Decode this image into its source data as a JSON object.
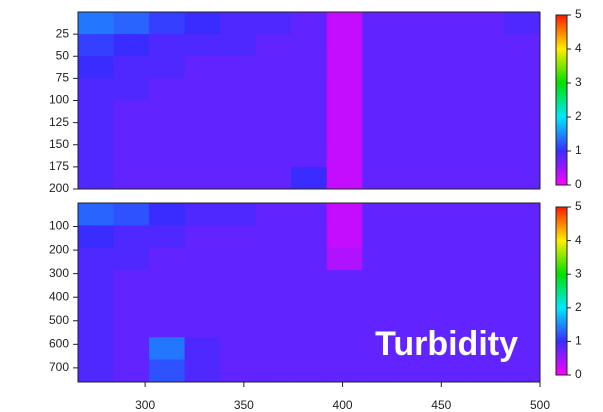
{
  "chart_data": [
    {
      "type": "heatmap",
      "x": [
        275,
        293,
        311,
        329,
        347,
        365,
        383,
        401,
        419,
        437,
        455,
        473,
        491
      ],
      "y": [
        12.5,
        37.5,
        62.5,
        87.5,
        112.5,
        137.5,
        162.5,
        187.5
      ],
      "z": [
        [
          1.4,
          1.3,
          1.1,
          1.0,
          0.9,
          0.9,
          0.8,
          0.3,
          0.8,
          0.8,
          0.8,
          0.8,
          0.9
        ],
        [
          1.1,
          1.0,
          0.9,
          0.9,
          0.9,
          0.8,
          0.8,
          0.3,
          0.8,
          0.8,
          0.8,
          0.8,
          0.8
        ],
        [
          1.0,
          0.9,
          0.9,
          0.8,
          0.8,
          0.8,
          0.8,
          0.3,
          0.8,
          0.8,
          0.8,
          0.8,
          0.8
        ],
        [
          0.9,
          0.9,
          0.8,
          0.8,
          0.8,
          0.8,
          0.8,
          0.3,
          0.8,
          0.8,
          0.8,
          0.8,
          0.8
        ],
        [
          0.9,
          0.8,
          0.8,
          0.8,
          0.8,
          0.8,
          0.8,
          0.3,
          0.8,
          0.8,
          0.8,
          0.8,
          0.8
        ],
        [
          0.9,
          0.8,
          0.8,
          0.8,
          0.8,
          0.8,
          0.8,
          0.3,
          0.8,
          0.8,
          0.8,
          0.8,
          0.8
        ],
        [
          0.9,
          0.8,
          0.8,
          0.8,
          0.8,
          0.8,
          0.8,
          0.3,
          0.8,
          0.8,
          0.8,
          0.8,
          0.8
        ],
        [
          0.9,
          0.8,
          0.8,
          0.8,
          0.8,
          0.8,
          1.0,
          0.3,
          0.8,
          0.8,
          0.8,
          0.8,
          0.8
        ]
      ],
      "xlim": [
        266,
        500
      ],
      "ylim": [
        0,
        200
      ],
      "yticks": [
        25,
        50,
        75,
        100,
        125,
        150,
        175,
        200
      ],
      "zlim": [
        0,
        5
      ],
      "zticks": [
        0,
        1,
        2,
        3,
        4,
        5
      ],
      "colormap": [
        "#ff00ff",
        "#3a2cff",
        "#00e8ff",
        "#00e000",
        "#ffee00",
        "#ff1a00"
      ]
    },
    {
      "type": "heatmap",
      "x": [
        275,
        293,
        311,
        329,
        347,
        365,
        383,
        401,
        419,
        437,
        455,
        473,
        491
      ],
      "y": [
        47.5,
        142.5,
        237.5,
        332.5,
        427.5,
        522.5,
        617.5,
        712.5
      ],
      "z": [
        [
          1.3,
          1.2,
          1.0,
          0.9,
          0.9,
          0.8,
          0.8,
          0.3,
          0.8,
          0.8,
          0.8,
          0.8,
          0.8
        ],
        [
          1.0,
          0.9,
          0.9,
          0.8,
          0.8,
          0.8,
          0.8,
          0.3,
          0.8,
          0.8,
          0.8,
          0.8,
          0.8
        ],
        [
          0.9,
          0.9,
          0.8,
          0.8,
          0.8,
          0.8,
          0.8,
          0.4,
          0.8,
          0.8,
          0.8,
          0.8,
          0.8
        ],
        [
          0.9,
          0.8,
          0.8,
          0.8,
          0.8,
          0.8,
          0.8,
          0.8,
          0.8,
          0.8,
          0.8,
          0.8,
          0.8
        ],
        [
          0.9,
          0.8,
          0.8,
          0.8,
          0.8,
          0.8,
          0.8,
          0.8,
          0.8,
          0.8,
          0.8,
          0.8,
          0.8
        ],
        [
          0.9,
          0.8,
          0.8,
          0.8,
          0.8,
          0.8,
          0.8,
          0.8,
          0.8,
          0.8,
          0.8,
          0.8,
          0.8
        ],
        [
          0.9,
          0.8,
          1.4,
          0.9,
          0.8,
          0.8,
          0.8,
          0.8,
          0.8,
          0.8,
          0.8,
          0.8,
          0.8
        ],
        [
          0.9,
          0.8,
          1.2,
          0.9,
          0.8,
          0.8,
          0.8,
          0.8,
          0.8,
          0.8,
          0.8,
          0.8,
          0.8
        ]
      ],
      "xlim": [
        266,
        500
      ],
      "ylim": [
        0,
        760
      ],
      "xticks": [
        300,
        350,
        400,
        450,
        500
      ],
      "yticks": [
        100,
        200,
        300,
        400,
        500,
        600,
        700
      ],
      "zlim": [
        0,
        5
      ],
      "zticks": [
        0,
        1,
        2,
        3,
        4,
        5
      ],
      "colormap": [
        "#ff00ff",
        "#3a2cff",
        "#00e8ff",
        "#00e000",
        "#ffee00",
        "#ff1a00"
      ],
      "annotation": "Turbidity"
    }
  ]
}
